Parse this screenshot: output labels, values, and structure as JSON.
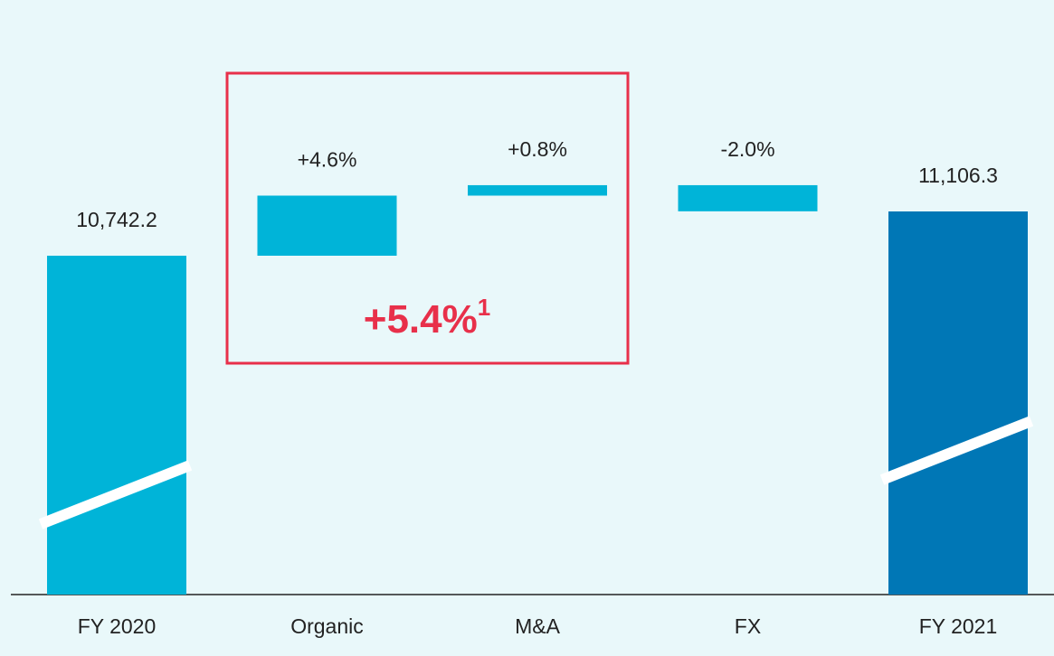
{
  "chart_data": {
    "type": "waterfall",
    "categories": [
      "FY 2020",
      "Organic",
      "M&A",
      "FX",
      "FY 2021"
    ],
    "values": [
      10742.2,
      4.6,
      0.8,
      -2.0,
      11106.3
    ],
    "value_labels": [
      "10,742.2",
      "+4.6%",
      "+0.8%",
      "-2.0%",
      "11,106.3"
    ],
    "kinds": [
      "total",
      "percent",
      "percent",
      "percent",
      "total"
    ],
    "colors": [
      "#00b4d8",
      "#00b4d8",
      "#00b4d8",
      "#00b4d8",
      "#0077b6"
    ],
    "annotation": {
      "text": "+5.4%",
      "footnote": "1",
      "color": "#e8304a"
    }
  }
}
